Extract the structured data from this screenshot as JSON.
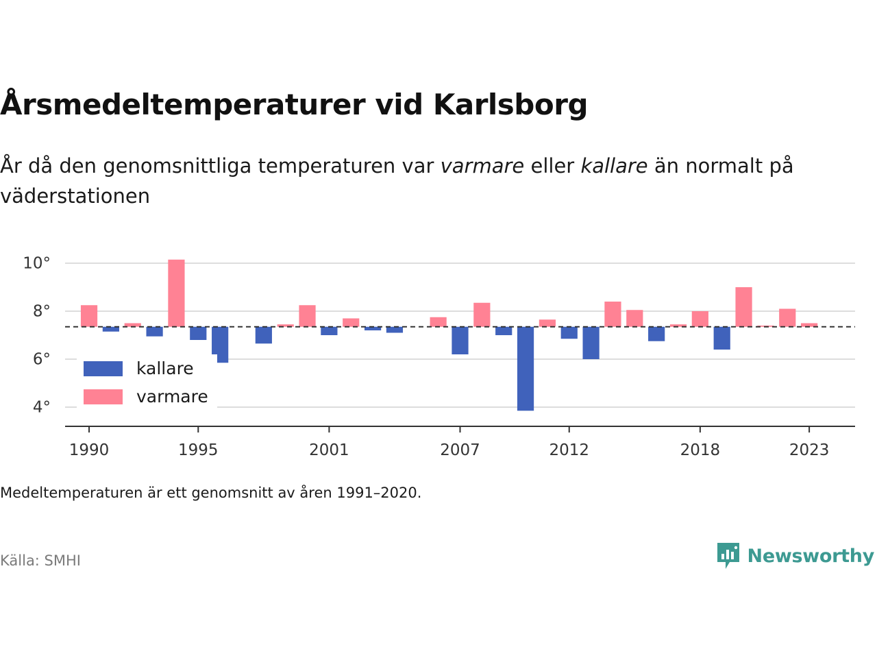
{
  "title": "Årsmedeltemperaturer vid Karlsborg",
  "subtitle": {
    "part1": "År då den genomsnittliga temperaturen var ",
    "warmer_word": "varmare",
    "part2": " eller ",
    "colder_word": "kallare",
    "part3": " än normalt på väderstationen"
  },
  "note": "Medeltemperaturen är ett genomsnitt av åren 1991–2020.",
  "source": "Källa: SMHI",
  "brand": {
    "name": "Newsworthy",
    "icon": "newsworthy-logo-icon"
  },
  "colors": {
    "colder": "#4062bb",
    "warmer": "#ff8294",
    "grid": "#dddddd",
    "baseline": "#333333",
    "axis": "#333333",
    "brand": "#3d9a92"
  },
  "chart_data": {
    "type": "bar",
    "title": "Årsmedeltemperaturer vid Karlsborg",
    "xlabel": "",
    "ylabel": "",
    "baseline": 7.35,
    "baseline_style": "dashed",
    "ylim": [
      3.2,
      10.4
    ],
    "yticks": [
      4,
      6,
      8,
      10
    ],
    "ytick_labels": [
      "4°",
      "6°",
      "8°",
      "10°"
    ],
    "xlim": [
      1988.9,
      2025.1
    ],
    "xticks": [
      1990,
      1995,
      2001,
      2007,
      2012,
      2018,
      2023
    ],
    "xtick_labels": [
      "1990",
      "1995",
      "2001",
      "2007",
      "2012",
      "2018",
      "2023"
    ],
    "grid": true,
    "legend": {
      "position": "left",
      "entries": [
        {
          "label": "kallare",
          "color": "#4062bb"
        },
        {
          "label": "varmare",
          "color": "#ff8294"
        }
      ]
    },
    "years": [
      1990,
      1991,
      1992,
      1993,
      1994,
      1995,
      1996,
      1997,
      1998,
      1999,
      2000,
      2001,
      2002,
      2003,
      2004,
      2005,
      2006,
      2007,
      2008,
      2009,
      2010,
      2011,
      2012,
      2013,
      2014,
      2015,
      2016,
      2017,
      2018,
      2019,
      2020,
      2021,
      2022,
      2023
    ],
    "values": [
      8.25,
      7.15,
      7.5,
      6.95,
      10.15,
      6.8,
      5.85,
      7.35,
      6.65,
      7.45,
      8.25,
      7.0,
      7.7,
      7.2,
      7.1,
      7.35,
      7.75,
      6.2,
      8.35,
      7.0,
      3.85,
      7.65,
      6.85,
      6.0,
      8.4,
      8.05,
      6.75,
      7.45,
      8.0,
      6.4,
      9.0,
      7.4,
      8.1,
      7.5
    ]
  }
}
